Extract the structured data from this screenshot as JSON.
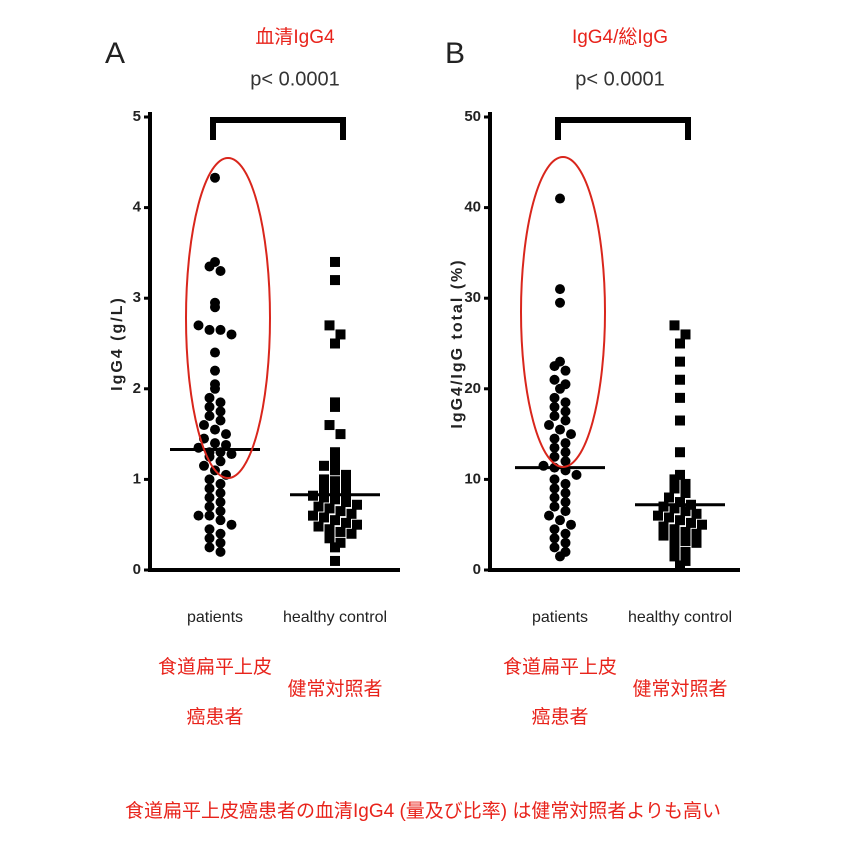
{
  "chart_data": [
    {
      "type": "strip",
      "panel_label": "A",
      "title": "血清IgG4",
      "annotation": "p< 0.0001",
      "ylabel": "IgG4 (g/L)",
      "categories": [
        "patients",
        "healthy control"
      ],
      "category_notes": [
        [
          "食道扁平上皮",
          "癌患者"
        ],
        [
          "健常対照者"
        ]
      ],
      "ylim": [
        0,
        5
      ],
      "yticks": [
        0,
        1,
        2,
        3,
        4,
        5
      ],
      "series": [
        {
          "marker": "circle",
          "color": "#000000",
          "median": 1.33,
          "values": [
            4.33,
            3.4,
            3.35,
            3.3,
            2.95,
            2.9,
            2.7,
            2.65,
            2.65,
            2.6,
            2.4,
            2.2,
            2.05,
            2.0,
            1.9,
            1.85,
            1.8,
            1.75,
            1.7,
            1.65,
            1.6,
            1.55,
            1.5,
            1.45,
            1.4,
            1.38,
            1.35,
            1.3,
            1.3,
            1.28,
            1.25,
            1.2,
            1.15,
            1.1,
            1.05,
            1.0,
            0.95,
            0.9,
            0.85,
            0.8,
            0.75,
            0.7,
            0.65,
            0.6,
            0.6,
            0.55,
            0.5,
            0.45,
            0.4,
            0.35,
            0.3,
            0.25,
            0.2
          ]
        },
        {
          "marker": "square",
          "color": "#000000",
          "median": 0.83,
          "values": [
            3.4,
            3.2,
            2.7,
            2.6,
            2.5,
            1.85,
            1.8,
            1.6,
            1.5,
            1.3,
            1.2,
            1.15,
            1.1,
            1.05,
            1.0,
            0.98,
            0.95,
            0.9,
            0.88,
            0.85,
            0.82,
            0.8,
            0.78,
            0.75,
            0.72,
            0.7,
            0.68,
            0.65,
            0.62,
            0.6,
            0.58,
            0.55,
            0.52,
            0.5,
            0.48,
            0.45,
            0.42,
            0.4,
            0.35,
            0.3,
            0.25,
            0.1
          ]
        }
      ]
    },
    {
      "type": "strip",
      "panel_label": "B",
      "title": "IgG4/総IgG",
      "annotation": "p< 0.0001",
      "ylabel": "IgG4/IgG total (%)",
      "categories": [
        "patients",
        "healthy control"
      ],
      "category_notes": [
        [
          "食道扁平上皮",
          "癌患者"
        ],
        [
          "健常対照者"
        ]
      ],
      "ylim": [
        0,
        50
      ],
      "yticks": [
        0,
        10,
        20,
        30,
        40,
        50
      ],
      "series": [
        {
          "marker": "circle",
          "color": "#000000",
          "median": 11.3,
          "values": [
            41,
            31,
            29.5,
            23,
            22.5,
            22,
            21,
            20.5,
            20,
            19,
            18.5,
            18,
            17.5,
            17,
            16.5,
            16,
            15.5,
            15,
            14.5,
            14,
            13.5,
            13,
            12.5,
            12,
            11.5,
            11.3,
            11,
            10.5,
            10,
            9.5,
            9,
            8.5,
            8,
            7.5,
            7,
            6.5,
            6,
            5.5,
            5,
            4.5,
            4,
            3.5,
            3,
            2.5,
            2,
            1.5
          ]
        },
        {
          "marker": "square",
          "color": "#000000",
          "median": 7.2,
          "values": [
            27,
            26,
            25,
            23,
            21,
            19,
            16.5,
            13,
            10.5,
            10,
            9.5,
            9,
            8.5,
            8,
            7.5,
            7.2,
            7,
            6.8,
            6.5,
            6.2,
            6,
            5.8,
            5.5,
            5.2,
            5,
            4.8,
            4.5,
            4.2,
            4,
            3.8,
            3.5,
            3.2,
            3,
            2.5,
            2,
            1.5,
            1,
            0.5
          ]
        }
      ]
    }
  ],
  "caption": "食道扁平上皮癌患者の血清IgG4 (量及び比率) は健常対照者よりも高い"
}
